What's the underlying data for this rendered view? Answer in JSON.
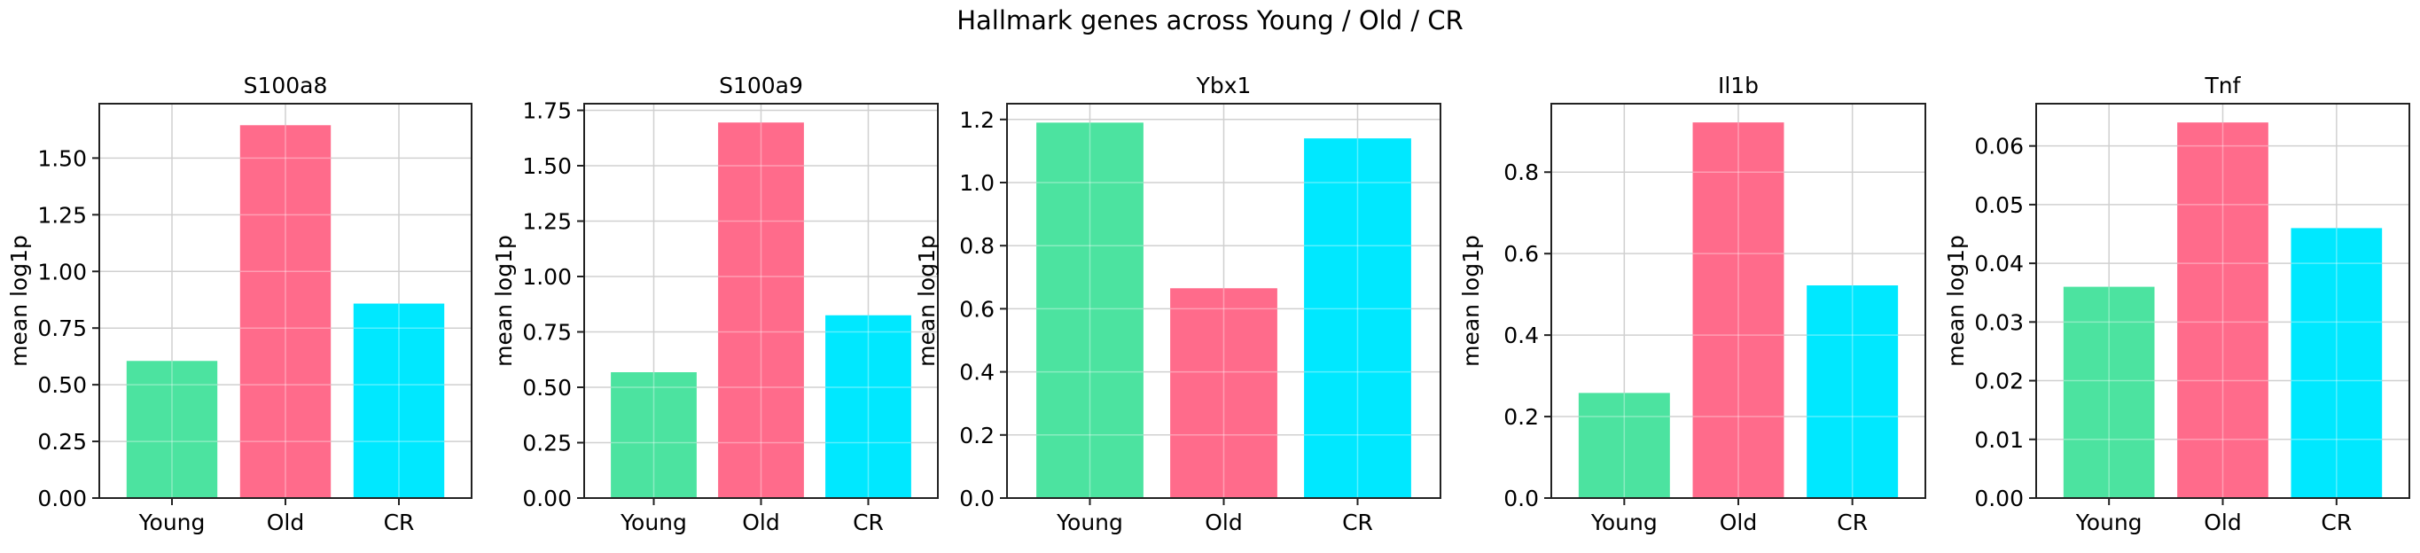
{
  "figure": {
    "title": "Hallmark genes across Young / Old / CR"
  },
  "chart_data": [
    {
      "type": "bar",
      "title": "S100a8",
      "xlabel": "",
      "ylabel": "mean log1p",
      "categories": [
        "Young",
        "Old",
        "CR"
      ],
      "values": [
        0.605,
        1.645,
        0.858
      ],
      "colors": [
        "#4ce3a0",
        "#ff6b8b",
        "#00e8ff"
      ],
      "ylim": [
        0,
        1.74
      ],
      "yticks": [
        0.0,
        0.25,
        0.5,
        0.75,
        1.0,
        1.25,
        1.5
      ],
      "ytick_labels": [
        "0.00",
        "0.25",
        "0.50",
        "0.75",
        "1.00",
        "1.25",
        "1.50"
      ],
      "grid": true
    },
    {
      "type": "bar",
      "title": "S100a9",
      "xlabel": "",
      "ylabel": "mean log1p",
      "categories": [
        "Young",
        "Old",
        "CR"
      ],
      "values": [
        0.568,
        1.695,
        0.825
      ],
      "colors": [
        "#4ce3a0",
        "#ff6b8b",
        "#00e8ff"
      ],
      "ylim": [
        0,
        1.78
      ],
      "yticks": [
        0.0,
        0.25,
        0.5,
        0.75,
        1.0,
        1.25,
        1.5,
        1.75
      ],
      "ytick_labels": [
        "0.00",
        "0.25",
        "0.50",
        "0.75",
        "1.00",
        "1.25",
        "1.50",
        "1.75"
      ],
      "grid": true
    },
    {
      "type": "bar",
      "title": "Ybx1",
      "xlabel": "",
      "ylabel": "mean log1p",
      "categories": [
        "Young",
        "Old",
        "CR"
      ],
      "values": [
        1.19,
        0.665,
        1.14
      ],
      "colors": [
        "#4ce3a0",
        "#ff6b8b",
        "#00e8ff"
      ],
      "ylim": [
        0,
        1.25
      ],
      "yticks": [
        0.0,
        0.2,
        0.4,
        0.6,
        0.8,
        1.0,
        1.2
      ],
      "ytick_labels": [
        "0.0",
        "0.2",
        "0.4",
        "0.6",
        "0.8",
        "1.0",
        "1.2"
      ],
      "grid": true
    },
    {
      "type": "bar",
      "title": "Il1b",
      "xlabel": "",
      "ylabel": "mean log1p",
      "categories": [
        "Young",
        "Old",
        "CR"
      ],
      "values": [
        0.258,
        0.922,
        0.522
      ],
      "colors": [
        "#4ce3a0",
        "#ff6b8b",
        "#00e8ff"
      ],
      "ylim": [
        0,
        0.968
      ],
      "yticks": [
        0.0,
        0.2,
        0.4,
        0.6,
        0.8
      ],
      "ytick_labels": [
        "0.0",
        "0.2",
        "0.4",
        "0.6",
        "0.8"
      ],
      "grid": true
    },
    {
      "type": "bar",
      "title": "Tnf",
      "xlabel": "",
      "ylabel": "mean log1p",
      "categories": [
        "Young",
        "Old",
        "CR"
      ],
      "values": [
        0.036,
        0.064,
        0.046
      ],
      "colors": [
        "#4ce3a0",
        "#ff6b8b",
        "#00e8ff"
      ],
      "ylim": [
        0,
        0.0672
      ],
      "yticks": [
        0.0,
        0.01,
        0.02,
        0.03,
        0.04,
        0.05,
        0.06
      ],
      "ytick_labels": [
        "0.00",
        "0.01",
        "0.02",
        "0.03",
        "0.04",
        "0.05",
        "0.06"
      ],
      "grid": true
    }
  ]
}
